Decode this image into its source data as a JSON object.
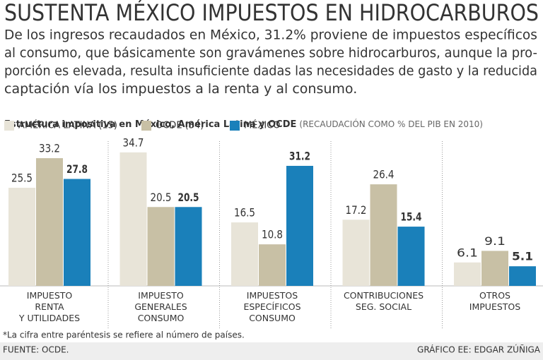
{
  "chart_data": {
    "type": "bar",
    "title": "SUSTENTA MÉXICO IMPUESTOS EN HIDROCARBUROS",
    "intro": [
      "De los ingresos recaudados en México, 31.2% proviene de impuestos específicos",
      "al consumo, que básicamente son gravámenes sobre hidrocarburos, aunque la pro-",
      "porción es elevada, resulta insuficiente dadas las necesidades de gasto y la reducida",
      "captación vía los impuestos a la renta y al consumo."
    ],
    "subtitle": "Estructura impositiva en México, América Latina y OCDE",
    "subtitle_note": "(RECAUDACIÓN COMO % DEL PIB EN 2010)",
    "categories": [
      "IMPUESTO\nRENTA\nY UTILIDADES",
      "IMPUESTO\nGENERALES\nCONSUMO",
      "IMPUESTOS\nESPECÍFICOS\nCONSUMO",
      "CONTRIBUCIONES\nSEG. SOCIAL",
      "OTROS\nIMPUESTOS"
    ],
    "series": [
      {
        "name": "AMÉRICA LATINA (15)",
        "color": "#e8e4d8",
        "values": [
          25.5,
          34.7,
          16.5,
          17.2,
          6.1
        ]
      },
      {
        "name": "OCDE (34)",
        "color": "#c8c0a5",
        "values": [
          33.2,
          20.5,
          10.8,
          26.4,
          9.1
        ]
      },
      {
        "name": "MÉXICO",
        "color": "#1a80ba",
        "values": [
          27.8,
          20.5,
          31.2,
          15.4,
          5.1
        ]
      }
    ],
    "footnote": "*La cifra entre paréntesis se refiere al número de países.",
    "source": "FUENTE: OCDE.",
    "credit": "GRÁFICO EE: EDGAR ZÚÑIGA"
  }
}
